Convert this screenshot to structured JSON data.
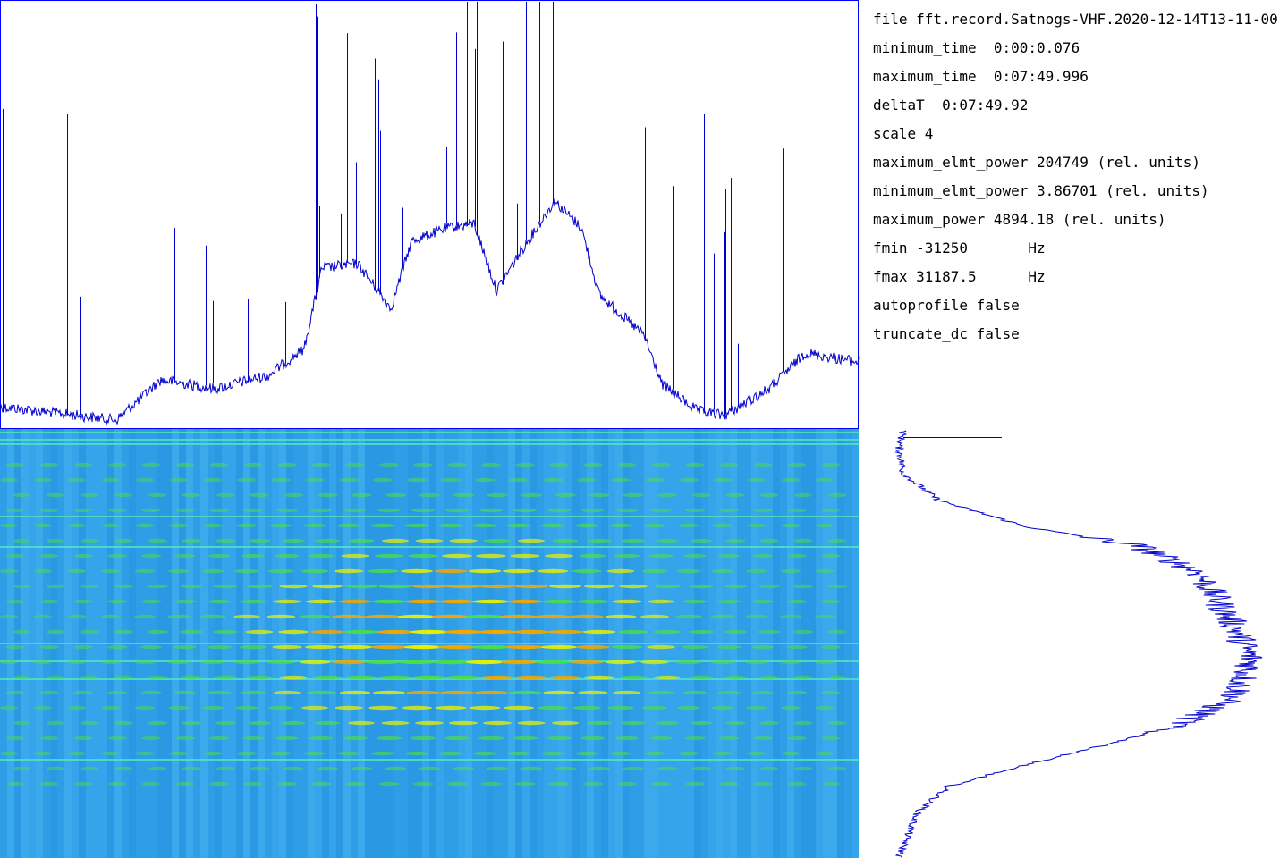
{
  "info": {
    "lines": [
      "file fft.record.Satnogs-VHF.2020-12-14T13-11-00",
      "minimum_time  0:00:0.076",
      "maximum_time  0:07:49.996",
      "deltaT  0:07:49.92",
      "scale 4",
      "maximum_elmt_power 204749 (rel. units)",
      "minimum_elmt_power 3.86701 (rel. units)",
      "maximum_power 4894.18 (rel. units)",
      "fmin -31250       Hz",
      "fmax 31187.5      Hz",
      "autoprofile false",
      "truncate_dc false"
    ]
  }
}
